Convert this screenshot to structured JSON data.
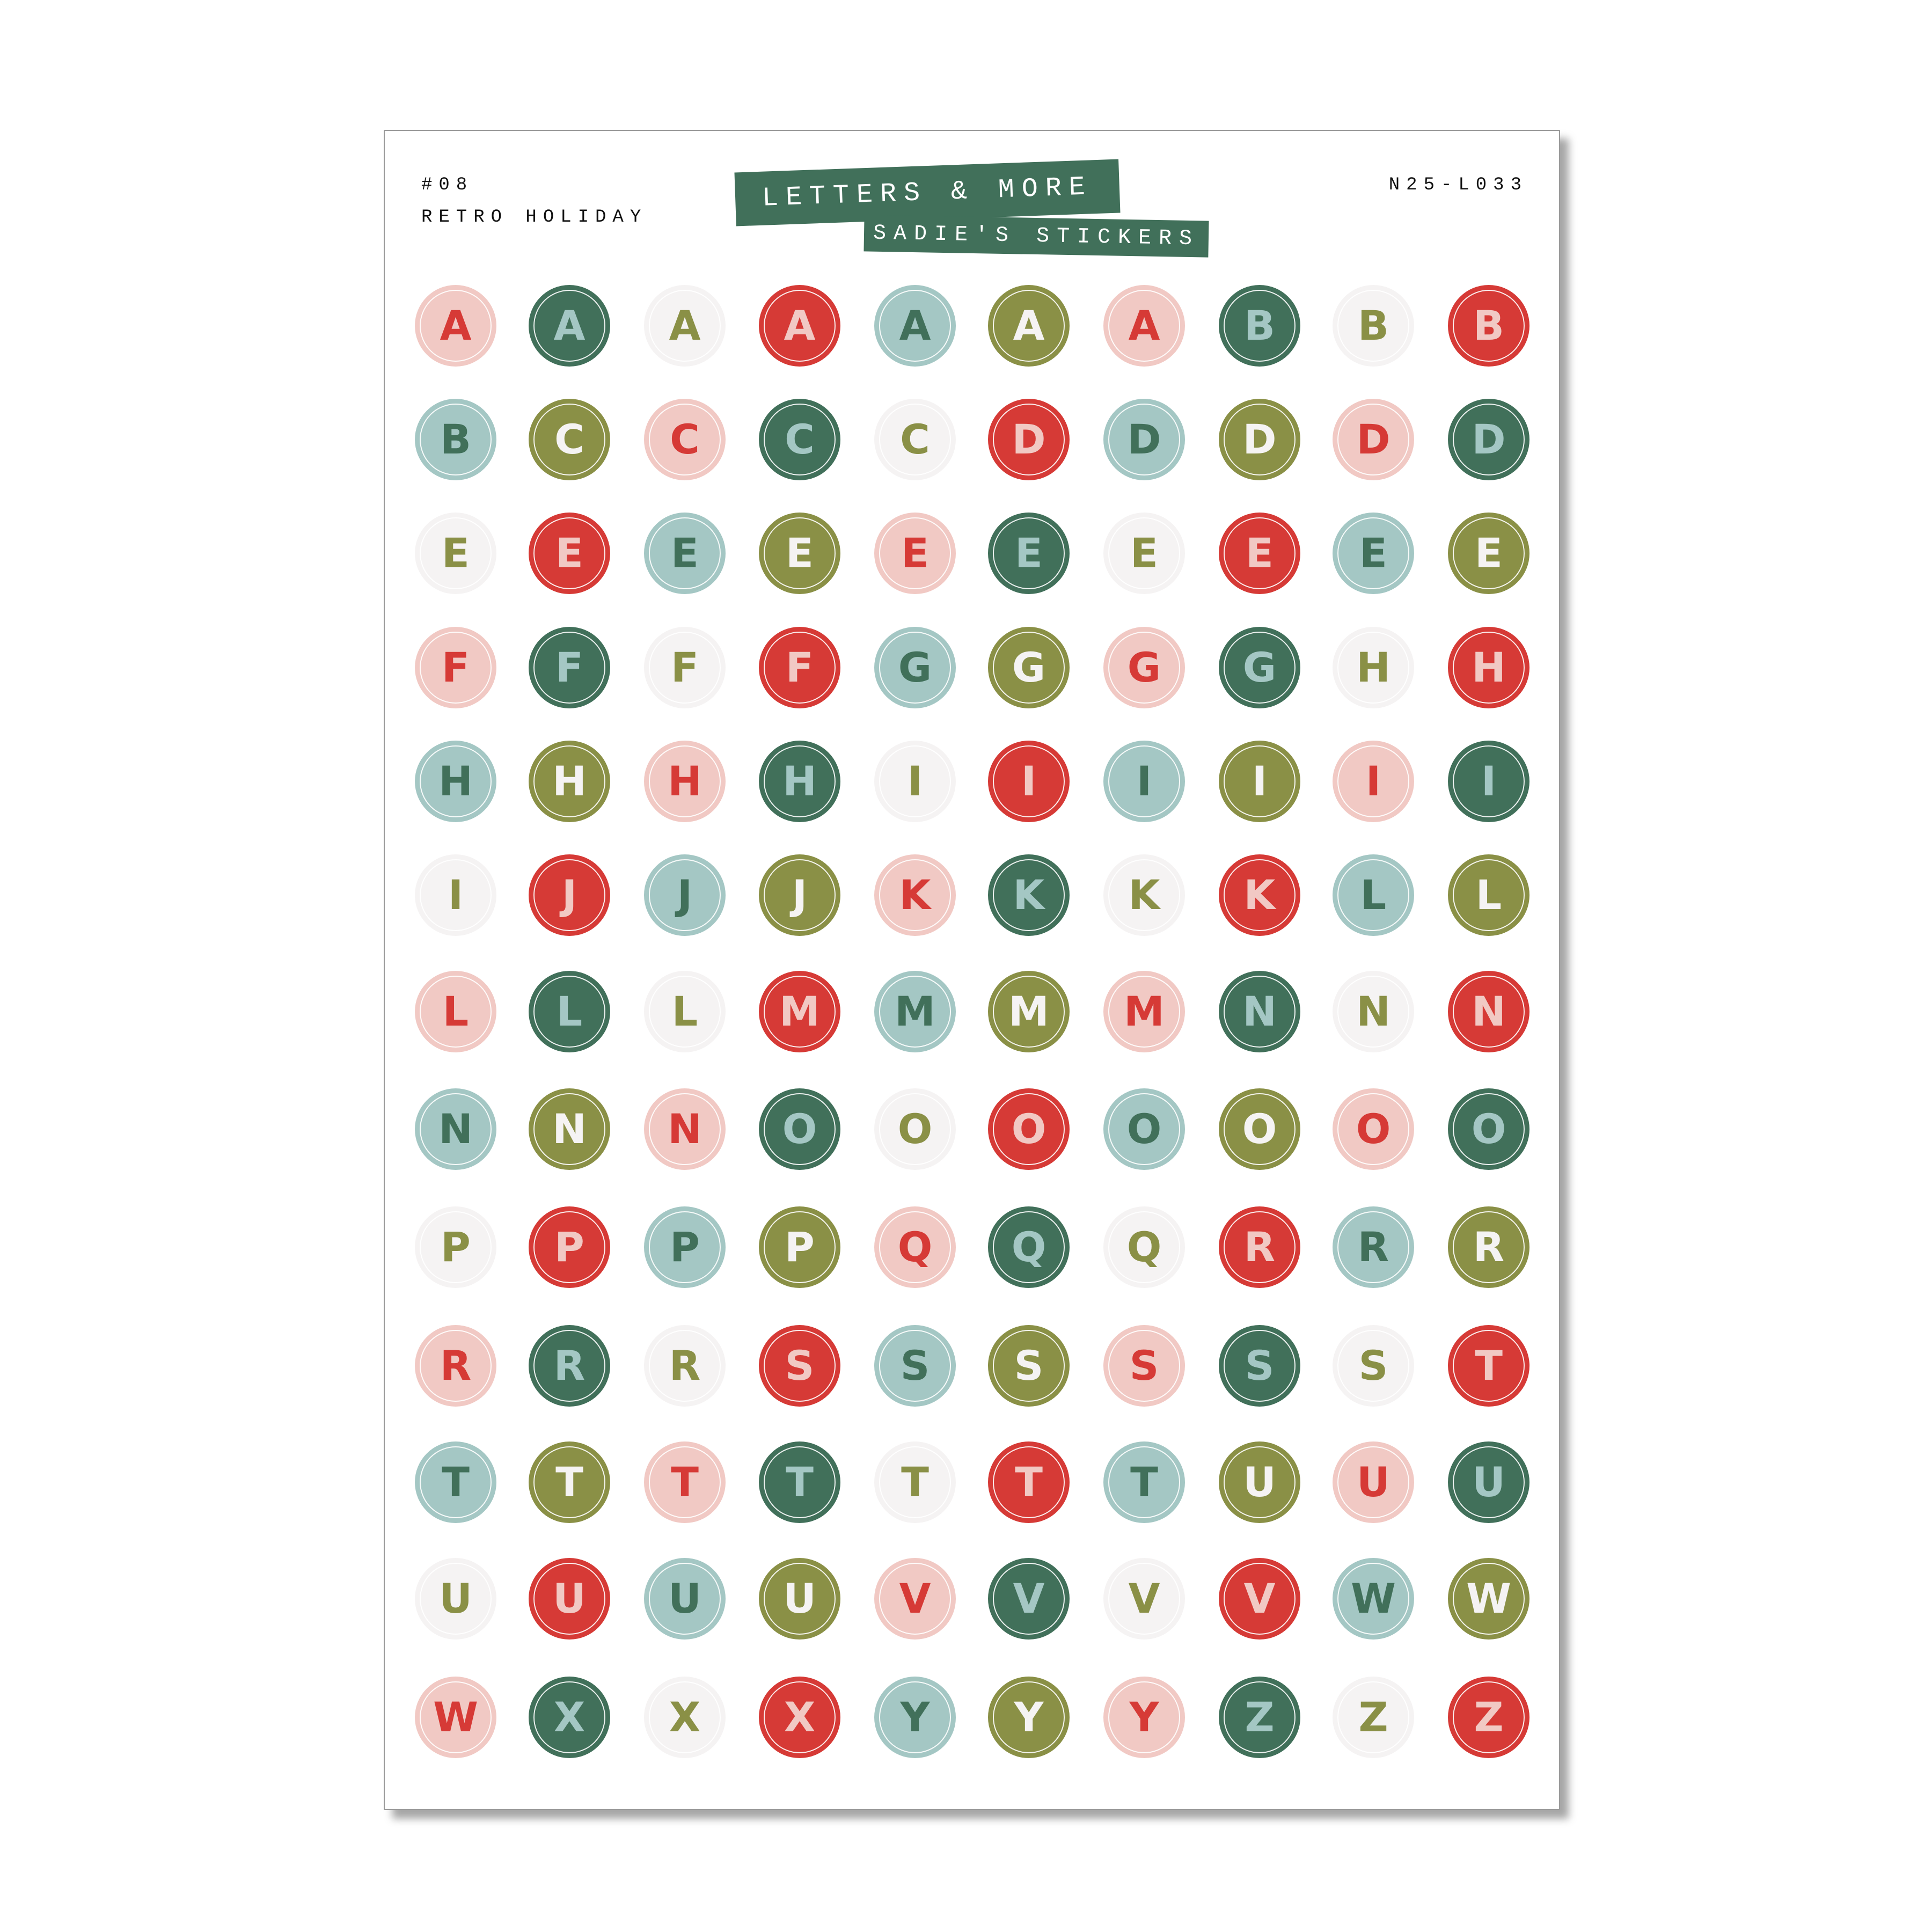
{
  "header": {
    "number": "#08",
    "collection": "RETRO HOLIDAY",
    "banner_title": "LETTERS & MORE",
    "banner_brand": "SADIE'S STICKERS",
    "code": "N25-L033"
  },
  "palette": {
    "pink": {
      "bg": "#f1c9c4",
      "fg": "#d63a36"
    },
    "green": {
      "bg": "#41705a",
      "fg": "#a4c7c4"
    },
    "white": {
      "bg": "#f5f3f3",
      "fg": "#8a9046"
    },
    "red": {
      "bg": "#d63a36",
      "fg": "#f1c9c4"
    },
    "teal": {
      "bg": "#a4c7c4",
      "fg": "#41705a"
    },
    "olive": {
      "bg": "#8a9046",
      "fg": "#f5f3f3"
    }
  },
  "style_cycle": [
    "pink",
    "green",
    "white",
    "red",
    "teal",
    "olive"
  ],
  "rows": [
    [
      "A",
      "A",
      "A",
      "A",
      "A",
      "A",
      "A",
      "B",
      "B",
      "B"
    ],
    [
      "B",
      "C",
      "C",
      "C",
      "C",
      "D",
      "D",
      "D",
      "D",
      "D"
    ],
    [
      "E",
      "E",
      "E",
      "E",
      "E",
      "E",
      "E",
      "E",
      "E",
      "E"
    ],
    [
      "F",
      "F",
      "F",
      "F",
      "G",
      "G",
      "G",
      "G",
      "H",
      "H"
    ],
    [
      "H",
      "H",
      "H",
      "H",
      "I",
      "I",
      "I",
      "I",
      "I",
      "I"
    ],
    [
      "I",
      "J",
      "J",
      "J",
      "K",
      "K",
      "K",
      "K",
      "L",
      "L"
    ],
    [
      "L",
      "L",
      "L",
      "M",
      "M",
      "M",
      "M",
      "N",
      "N",
      "N"
    ],
    [
      "N",
      "N",
      "N",
      "O",
      "O",
      "O",
      "O",
      "O",
      "O",
      "O"
    ],
    [
      "P",
      "P",
      "P",
      "P",
      "Q",
      "Q",
      "Q",
      "R",
      "R",
      "R"
    ],
    [
      "R",
      "R",
      "R",
      "S",
      "S",
      "S",
      "S",
      "S",
      "S",
      "T"
    ],
    [
      "T",
      "T",
      "T",
      "T",
      "T",
      "T",
      "T",
      "U",
      "U",
      "U"
    ],
    [
      "U",
      "U",
      "U",
      "U",
      "V",
      "V",
      "V",
      "V",
      "W",
      "W"
    ],
    [
      "W",
      "X",
      "X",
      "X",
      "Y",
      "Y",
      "Y",
      "Z",
      "Z",
      "Z"
    ]
  ]
}
